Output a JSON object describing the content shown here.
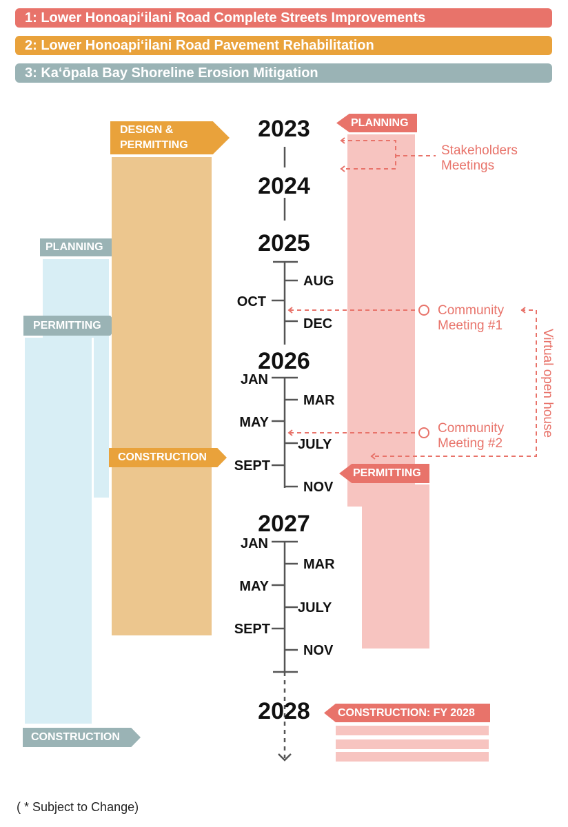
{
  "legend": [
    {
      "label": "1: Lower Honoapi‘ilani Road Complete Streets Improvements",
      "color": "#e8736a"
    },
    {
      "label": "2: Lower Honoapi‘ilani Road Pavement Rehabilitation",
      "color": "#e9a23b"
    },
    {
      "label": "3: Ka‘ōpala Bay Shoreline Erosion Mitigation",
      "color": "#9ab3b5"
    }
  ],
  "project2": {
    "design_label": "DESIGN & PERMITTING",
    "construction_label": "CONSTRUCTION"
  },
  "project3": {
    "planning_label": "PLANNING",
    "permitting_label": "PERMITTING",
    "construction_label": "CONSTRUCTION"
  },
  "project1": {
    "planning_label": "PLANNING",
    "permitting_label": "PERMITTING",
    "construction_label": "CONSTRUCTION: FY 2028"
  },
  "timeline": {
    "years": [
      "2023",
      "2024",
      "2025",
      "2026",
      "2027",
      "2028"
    ],
    "months_2025": {
      "aug": "AUG",
      "oct": "OCT",
      "dec": "DEC"
    },
    "months_2026": {
      "jan": "JAN",
      "mar": "MAR",
      "may": "MAY",
      "july": "JULY",
      "sept": "SEPT",
      "nov": "NOV"
    },
    "months_2027": {
      "jan": "JAN",
      "mar": "MAR",
      "may": "MAY",
      "july": "JULY",
      "sept": "SEPT",
      "nov": "NOV"
    }
  },
  "annotations": {
    "stakeholders": [
      "Stakeholders",
      "Meetings"
    ],
    "community1": [
      "Community",
      "Meeting #1"
    ],
    "community2": [
      "Community",
      "Meeting #2"
    ],
    "virtual": "Virtual open house"
  },
  "footnote": "( * Subject to Change)"
}
